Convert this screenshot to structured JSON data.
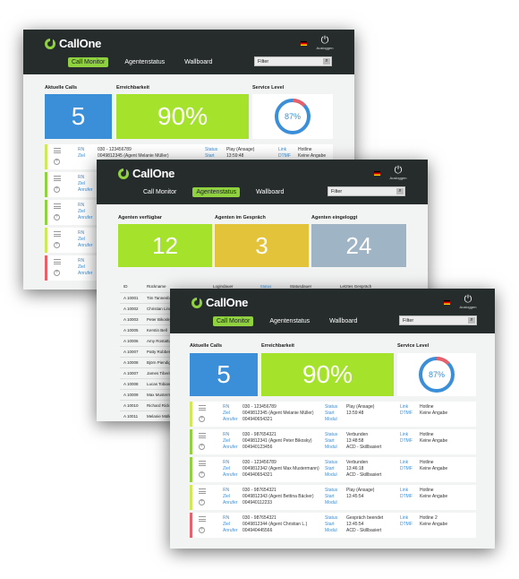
{
  "brand": "CallOne",
  "logout_label": "Ausloggen",
  "tabs": [
    "Call Monitor",
    "Agentenstatus",
    "Wallboard"
  ],
  "filter_placeholder": "Filter",
  "call_monitor": {
    "tiles": [
      {
        "label": "Aktuelle Calls",
        "value": "5"
      },
      {
        "label": "Erreichbarkeit",
        "value": "90%"
      },
      {
        "label": "Service Level",
        "value": "87%",
        "fraction": 0.87
      }
    ],
    "field_labels": {
      "rn": "RN",
      "ziel": "Ziel",
      "anrufer": "Anrufer",
      "status": "Status",
      "start": "Start",
      "modul": "Modul",
      "link": "Link",
      "dtmf": "DTMF"
    },
    "calls": [
      {
        "rn": "030 - 123456789",
        "ziel": "0049812345 (Agent Melanie Müller)",
        "anrufer": "004940654321",
        "status": "Play (Ansage)",
        "start": "13:59:48",
        "modul": "",
        "link": "Hotline",
        "dtmf": "Keine Angabe",
        "color": "#cfe85a"
      },
      {
        "rn": "030 - 987654321",
        "ziel": "0049812341 (Agent Peter Bikosky)",
        "anrufer": "004940123456",
        "status": "Verbunden",
        "start": "13:48:58",
        "modul": "ACD - Skillbasiert",
        "link": "Hotline",
        "dtmf": "Keine Angabe",
        "color": "#8fd13f"
      },
      {
        "rn": "030 - 123456789",
        "ziel": "0049812342 (Agent Max Mustermann)",
        "anrufer": "004940654321",
        "status": "Verbunden",
        "start": "13:46:18",
        "modul": "ACD - Skillbasiert",
        "link": "Hotline",
        "dtmf": "Keine Angabe",
        "color": "#8fd13f"
      },
      {
        "rn": "030 - 987654321",
        "ziel": "0049812343 (Agent Bettina Bäcker)",
        "anrufer": "004940112233",
        "status": "Play (Ansage)",
        "start": "13:45:54",
        "modul": "",
        "link": "Hotline",
        "dtmf": "Keine Angabe",
        "color": "#cfe85a"
      },
      {
        "rn": "030 - 987654321",
        "ziel": "0049812344 (Agent Christian L.)",
        "anrufer": "004940445566",
        "status": "Gespräch beendet",
        "start": "13:45:54",
        "modul": "ACD - Skillbasiert",
        "link": "Hotline 2",
        "dtmf": "Keine Angabe",
        "color": "#e8606a"
      }
    ]
  },
  "agent_status": {
    "tiles": [
      {
        "label": "Agenten verfügbar",
        "value": "12"
      },
      {
        "label": "Agenten im Gespräch",
        "value": "3"
      },
      {
        "label": "Agenten eingeloggt",
        "value": "24"
      }
    ],
    "columns": [
      "ID",
      "Rückname",
      "Logindauer",
      "Status",
      "Statusdauer",
      "Letztes Gespräch"
    ],
    "agents": [
      {
        "id": "A 10001",
        "name": "Tim Tannenbaum"
      },
      {
        "id": "A 10002",
        "name": "Christian Linder"
      },
      {
        "id": "A 10003",
        "name": "Peter Bikosky"
      },
      {
        "id": "A 10005",
        "name": "Kerstin Bell"
      },
      {
        "id": "A 10006",
        "name": "Amy Rostattus"
      },
      {
        "id": "A 10007",
        "name": "Patty Robberts"
      },
      {
        "id": "A 10008",
        "name": "Björn Piendig"
      },
      {
        "id": "A 10007",
        "name": "James Tiberius"
      },
      {
        "id": "A 10008",
        "name": "Lucas Tobias"
      },
      {
        "id": "A 10009",
        "name": "Max Mustermann"
      },
      {
        "id": "A 10010",
        "name": "Richard Rick"
      },
      {
        "id": "A 10011",
        "name": "Melanie Müller"
      }
    ]
  },
  "colors": {
    "accent": "#8fd13f",
    "blue_tile": "#3a8fd8",
    "green_tile": "#a4e22b",
    "yellow_tile": "#e2c33a",
    "grey_tile": "#9fb4c4",
    "ring": "#3a8fd8",
    "ring_alert": "#e8606a"
  }
}
